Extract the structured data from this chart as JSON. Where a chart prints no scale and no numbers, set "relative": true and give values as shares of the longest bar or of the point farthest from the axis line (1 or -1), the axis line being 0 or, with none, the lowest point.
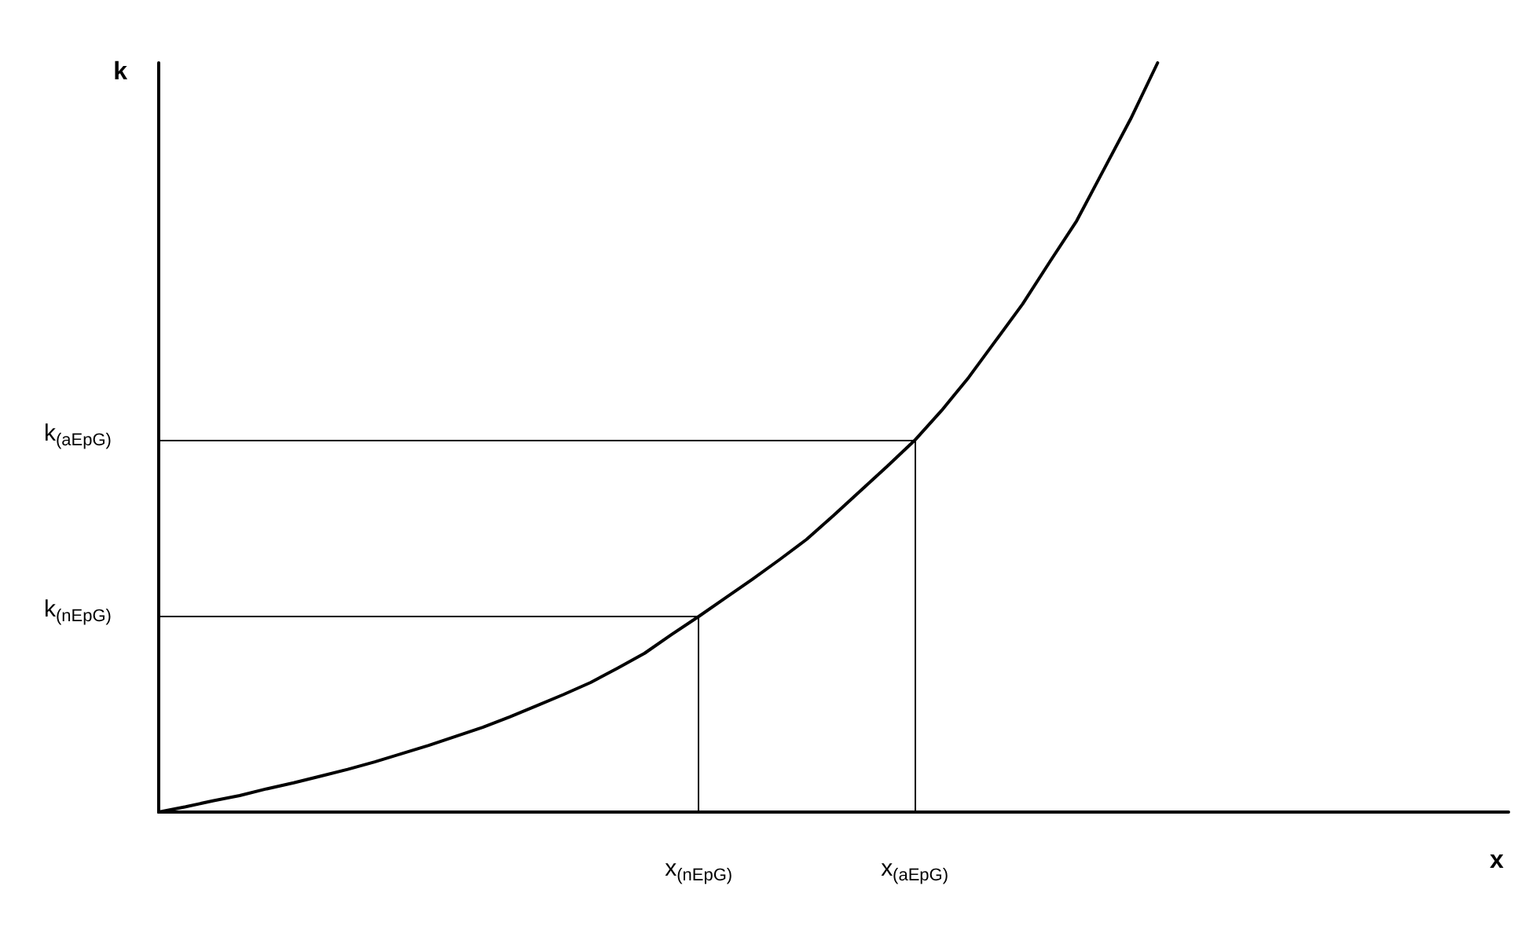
{
  "chart_data": {
    "type": "line",
    "xlabel": "x",
    "ylabel": "k",
    "relative": true,
    "categories": [
      null,
      null,
      null,
      null,
      null,
      null,
      null,
      null,
      null,
      null,
      null,
      null,
      null,
      null,
      null,
      null,
      null,
      null,
      null,
      null,
      "x$_{(nEpG)}$",
      null,
      null,
      null,
      null,
      null,
      null,
      null,
      "x$_{(aEpG)}$",
      null,
      null,
      null,
      null,
      null,
      null,
      null,
      null,
      null,
      null,
      null,
      null,
      null,
      null,
      null,
      null,
      null,
      null,
      null,
      null,
      null,
      null
    ],
    "series": [
      {
        "color": "#000000",
        "values": [
          0,
          0.007,
          0.015,
          0.022,
          0.031,
          0.039,
          0.048,
          0.057,
          0.067,
          0.078,
          0.089,
          0.101,
          0.113,
          0.127,
          0.142,
          0.157,
          0.173,
          0.192,
          0.212,
          0.237,
          0.261,
          0.286,
          0.311,
          0.337,
          0.364,
          0.396,
          0.429,
          0.462,
          0.496,
          0.536,
          0.58,
          0.629,
          0.678,
          0.734,
          0.789,
          0.857,
          0.925,
          1,
          null,
          null,
          null,
          null,
          null,
          null,
          null,
          null,
          null,
          null,
          null,
          null,
          null
        ]
      }
    ],
    "ref_lines": [
      {
        "axis": "x",
        "value": "x$_{(nEpG)}$",
        "color": "#000000"
      },
      {
        "axis": "x",
        "value": "x$_{(aEpG)}$",
        "color": "#000000"
      },
      {
        "axis": "y",
        "value": 0.261,
        "label": "k$_{(nEpG)}$",
        "color": "#000000"
      },
      {
        "axis": "y",
        "value": 0.496,
        "label": "k$_{(aEpG)}$",
        "color": "#000000"
      }
    ],
    "grid": false,
    "marker": "none",
    "line_style": "solid"
  }
}
